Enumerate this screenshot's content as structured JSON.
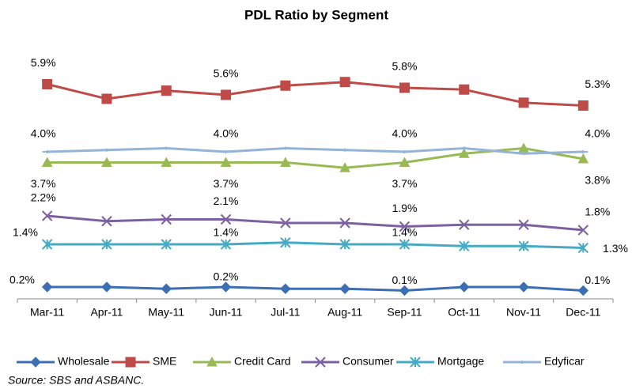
{
  "chart_data": {
    "type": "line",
    "title": "PDL Ratio by Segment",
    "source": "Source: SBS and ASBANC.",
    "categories": [
      "Mar-11",
      "Apr-11",
      "May-11",
      "Jun-11",
      "Jul-11",
      "Aug-11",
      "Sep-11",
      "Oct-11",
      "Nov-11",
      "Dec-11"
    ],
    "series": [
      {
        "name": "Wholesale",
        "color": "#3c6eb4",
        "marker": "diamond",
        "values": [
          0.2,
          0.2,
          0.15,
          0.2,
          0.15,
          0.15,
          0.1,
          0.2,
          0.2,
          0.1
        ],
        "value_labels": [
          "0.2%",
          null,
          null,
          "0.2%",
          null,
          null,
          "0.1%",
          null,
          null,
          "0.1%"
        ]
      },
      {
        "name": "SME",
        "color": "#be4b48",
        "marker": "square",
        "values": [
          5.9,
          5.49,
          5.72,
          5.6,
          5.86,
          5.96,
          5.8,
          5.75,
          5.38,
          5.3
        ],
        "value_labels": [
          "5.9%",
          null,
          null,
          "5.6%",
          null,
          null,
          "5.8%",
          null,
          null,
          "5.3%"
        ]
      },
      {
        "name": "Credit Card",
        "color": "#98b954",
        "marker": "triangle",
        "values": [
          3.7,
          3.7,
          3.7,
          3.7,
          3.7,
          3.55,
          3.7,
          3.95,
          4.1,
          3.8
        ],
        "value_labels": [
          "3.7%",
          null,
          null,
          "3.7%",
          null,
          null,
          "3.7%",
          null,
          null,
          "3.8%"
        ]
      },
      {
        "name": "Consumer",
        "color": "#7d60a0",
        "marker": "x",
        "values": [
          2.2,
          2.05,
          2.1,
          2.1,
          2.0,
          2.0,
          1.9,
          1.95,
          1.95,
          1.8
        ],
        "value_labels": [
          "2.2%",
          null,
          null,
          "2.1%",
          null,
          null,
          "1.9%",
          null,
          null,
          "1.8%"
        ]
      },
      {
        "name": "Mortgage",
        "color": "#46aac5",
        "marker": "star",
        "values": [
          1.4,
          1.4,
          1.4,
          1.4,
          1.45,
          1.4,
          1.4,
          1.35,
          1.35,
          1.3
        ],
        "value_labels": [
          "1.4%",
          null,
          null,
          "1.4%",
          null,
          null,
          "1.4%",
          null,
          null,
          "1.3%"
        ]
      },
      {
        "name": "Edyficar",
        "color": "#95b3d7",
        "marker": "plus",
        "values": [
          4.0,
          4.05,
          4.1,
          4.0,
          4.1,
          4.05,
          4.0,
          4.1,
          3.95,
          4.0
        ],
        "value_labels": [
          "4.0%",
          null,
          null,
          "4.0%",
          null,
          null,
          "4.0%",
          null,
          null,
          "4.0%"
        ]
      }
    ]
  }
}
